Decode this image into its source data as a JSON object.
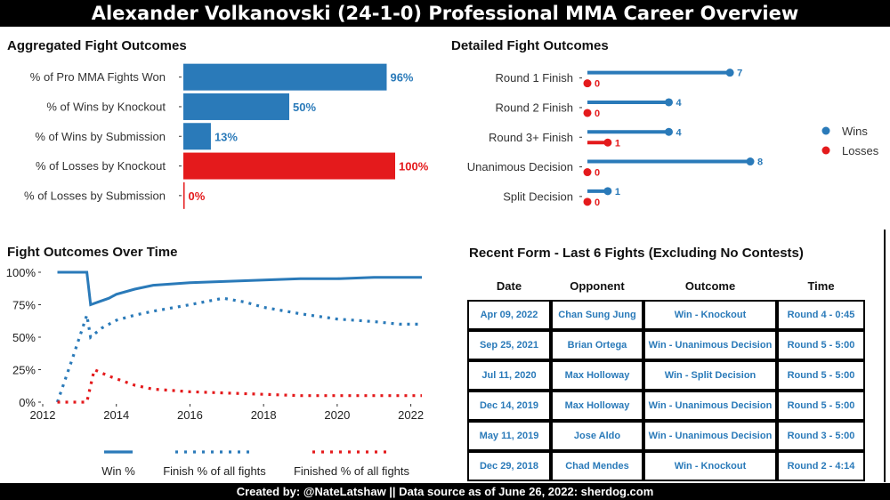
{
  "title": "Alexander Volkanovski (24-1-0) Professional MMA Career Overview",
  "footer": "Created by: @NateLatshaw || Data source as of June 26, 2022: sherdog.com",
  "colors": {
    "wins": "#2a7ab9",
    "losses": "#e41a1c",
    "text_gray": "#333333"
  },
  "chart_data": [
    {
      "type": "bar",
      "title": "Aggregated Fight Outcomes",
      "orientation": "horizontal",
      "categories": [
        "% of Pro MMA Fights Won",
        "% of Wins by Knockout",
        "% of Wins by Submission",
        "% of Losses by Knockout",
        "% of Losses by Submission"
      ],
      "values": [
        96,
        50,
        13,
        100,
        0
      ],
      "value_labels": [
        "96%",
        "50%",
        "13%",
        "100%",
        "0%"
      ],
      "series_group": [
        "wins",
        "wins",
        "wins",
        "losses",
        "losses"
      ],
      "xlim": [
        0,
        100
      ]
    },
    {
      "type": "scatter",
      "title": "Detailed Fight Outcomes",
      "categories": [
        "Round 1 Finish",
        "Round 2 Finish",
        "Round 3+ Finish",
        "Unanimous Decision",
        "Split Decision"
      ],
      "series": [
        {
          "name": "Wins",
          "values": [
            7,
            4,
            4,
            8,
            1
          ]
        },
        {
          "name": "Losses",
          "values": [
            0,
            0,
            1,
            0,
            0
          ]
        }
      ],
      "legend": "right",
      "xlim": [
        0,
        8
      ]
    },
    {
      "type": "line",
      "title": "Fight Outcomes Over Time",
      "xlabel": "",
      "ylabel": "",
      "xlim": [
        2012,
        2022.3
      ],
      "ylim": [
        0,
        100
      ],
      "xticks": [
        "2012",
        "2014",
        "2016",
        "2018",
        "2020",
        "2022"
      ],
      "yticks": [
        "0%",
        "25%",
        "50%",
        "75%",
        "100%"
      ],
      "legend": "bottom",
      "series": [
        {
          "name": "Win %",
          "style": "solid",
          "color": "wins",
          "x": [
            2012.4,
            2013.0,
            2013.2,
            2013.3,
            2013.5,
            2013.8,
            2014.0,
            2014.5,
            2015.0,
            2016.0,
            2017.0,
            2018.0,
            2019.0,
            2020.0,
            2021.0,
            2022.3
          ],
          "y": [
            100,
            100,
            100,
            75,
            77,
            80,
            83,
            87,
            90,
            92,
            93,
            94,
            95,
            95,
            96,
            96
          ]
        },
        {
          "name": "Finish % of all fights",
          "style": "dotted",
          "color": "wins",
          "x": [
            2012.4,
            2012.8,
            2013.2,
            2013.3,
            2013.6,
            2014.0,
            2014.5,
            2015.0,
            2016.0,
            2016.9,
            2017.5,
            2018.0,
            2019.0,
            2020.0,
            2021.0,
            2021.7,
            2022.3
          ],
          "y": [
            0,
            33,
            67,
            50,
            57,
            63,
            67,
            70,
            75,
            80,
            77,
            73,
            68,
            64,
            62,
            60,
            60
          ]
        },
        {
          "name": "Finished % of all fights",
          "style": "dotted",
          "color": "losses",
          "x": [
            2012.4,
            2013.0,
            2013.2,
            2013.4,
            2013.8,
            2014.5,
            2015.0,
            2016.0,
            2017.0,
            2018.0,
            2019.0,
            2020.0,
            2021.0,
            2022.3
          ],
          "y": [
            0,
            0,
            0,
            25,
            20,
            13,
            10,
            8,
            7,
            6,
            5,
            5,
            5,
            5
          ]
        }
      ]
    }
  ],
  "recent_form": {
    "title": "Recent Form - Last 6 Fights (Excluding No Contests)",
    "headers": [
      "Date",
      "Opponent",
      "Outcome",
      "Time"
    ],
    "rows": [
      [
        "Apr  09, 2022",
        "Chan Sung Jung",
        "Win - Knockout",
        "Round 4 - 0:45"
      ],
      [
        "Sep  25, 2021",
        "Brian Ortega",
        "Win - Unanimous Decision",
        "Round 5 - 5:00"
      ],
      [
        "Jul  11, 2020",
        "Max Holloway",
        "Win - Split Decision",
        "Round 5 - 5:00"
      ],
      [
        "Dec  14, 2019",
        "Max Holloway",
        "Win - Unanimous Decision",
        "Round 5 - 5:00"
      ],
      [
        "May  11, 2019",
        "Jose Aldo",
        "Win - Unanimous Decision",
        "Round 3 - 5:00"
      ],
      [
        "Dec  29, 2018",
        "Chad Mendes",
        "Win - Knockout",
        "Round 2 - 4:14"
      ]
    ]
  }
}
